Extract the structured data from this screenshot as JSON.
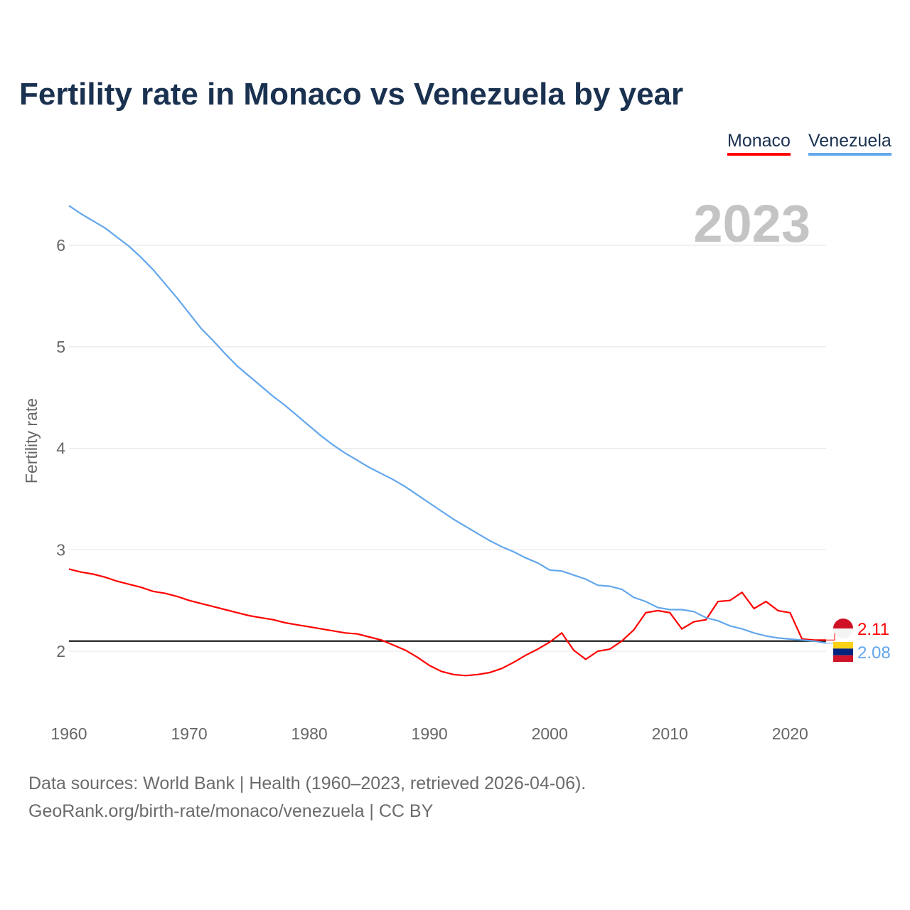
{
  "chart_data": {
    "type": "line",
    "title": "Fertility rate in Monaco vs Venezuela by year",
    "ylabel": "Fertility rate",
    "xlabel": "",
    "xlim": [
      1960,
      2023
    ],
    "ylim": [
      1.5,
      6.6
    ],
    "xticks": [
      1960,
      1970,
      1980,
      1990,
      2000,
      2010,
      2020
    ],
    "yticks": [
      2,
      3,
      4,
      5,
      6
    ],
    "grid": true,
    "legend_placement": "top-right",
    "year_label": "2023",
    "reference_line": 2.1,
    "x": [
      1960,
      1961,
      1962,
      1963,
      1964,
      1965,
      1966,
      1967,
      1968,
      1969,
      1970,
      1971,
      1972,
      1973,
      1974,
      1975,
      1976,
      1977,
      1978,
      1979,
      1980,
      1981,
      1982,
      1983,
      1984,
      1985,
      1986,
      1987,
      1988,
      1989,
      1990,
      1991,
      1992,
      1993,
      1994,
      1995,
      1996,
      1997,
      1998,
      1999,
      2000,
      2001,
      2002,
      2003,
      2004,
      2005,
      2006,
      2007,
      2008,
      2009,
      2010,
      2011,
      2012,
      2013,
      2014,
      2015,
      2016,
      2017,
      2018,
      2019,
      2020,
      2021,
      2022,
      2023
    ],
    "series": [
      {
        "name": "Monaco",
        "color": "#ff0000",
        "end_label": "2.11",
        "values": [
          2.81,
          2.78,
          2.76,
          2.73,
          2.69,
          2.66,
          2.63,
          2.59,
          2.57,
          2.54,
          2.5,
          2.47,
          2.44,
          2.41,
          2.38,
          2.35,
          2.33,
          2.31,
          2.28,
          2.26,
          2.24,
          2.22,
          2.2,
          2.18,
          2.17,
          2.14,
          2.11,
          2.06,
          2.01,
          1.94,
          1.86,
          1.8,
          1.77,
          1.76,
          1.77,
          1.79,
          1.83,
          1.89,
          1.96,
          2.02,
          2.09,
          2.18,
          2.01,
          1.92,
          2.0,
          2.02,
          2.1,
          2.21,
          2.38,
          2.4,
          2.38,
          2.22,
          2.29,
          2.31,
          2.49,
          2.5,
          2.58,
          2.42,
          2.49,
          2.4,
          2.38,
          2.12,
          2.11,
          2.11
        ]
      },
      {
        "name": "Venezuela",
        "color": "#63a7ec",
        "end_label": "2.08",
        "values": [
          6.39,
          6.31,
          6.24,
          6.17,
          6.08,
          5.99,
          5.88,
          5.76,
          5.62,
          5.48,
          5.33,
          5.18,
          5.06,
          4.93,
          4.81,
          4.71,
          4.61,
          4.51,
          4.42,
          4.32,
          4.22,
          4.12,
          4.03,
          3.95,
          3.88,
          3.81,
          3.75,
          3.69,
          3.62,
          3.54,
          3.46,
          3.38,
          3.3,
          3.23,
          3.16,
          3.09,
          3.03,
          2.98,
          2.92,
          2.87,
          2.8,
          2.79,
          2.75,
          2.71,
          2.65,
          2.64,
          2.61,
          2.53,
          2.49,
          2.43,
          2.41,
          2.41,
          2.39,
          2.33,
          2.3,
          2.25,
          2.22,
          2.18,
          2.15,
          2.13,
          2.12,
          2.11,
          2.1,
          2.08
        ]
      }
    ]
  },
  "footer": {
    "source": "Data sources: World Bank | Health (1960–2023, retrieved 2026-04-06).",
    "credit": "GeoRank.org/birth-rate/monaco/venezuela | CC BY"
  }
}
